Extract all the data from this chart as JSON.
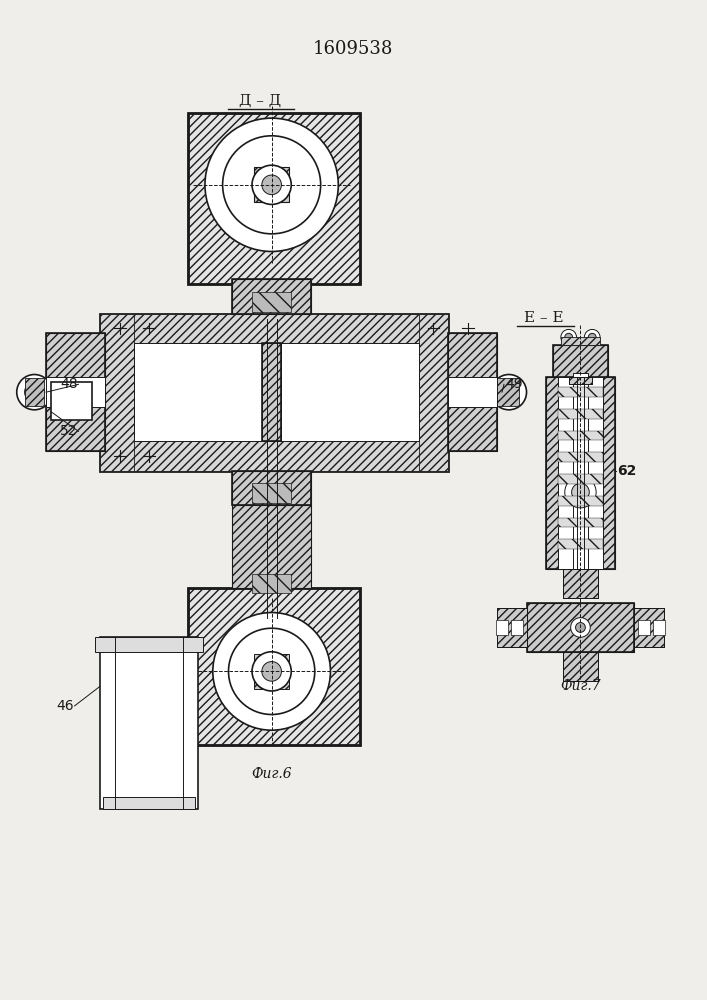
{
  "title": "1609538",
  "bg_color": "#f0eeea",
  "line_color": "#1a1a1a",
  "fig_width": 7.07,
  "fig_height": 10.0,
  "labels": {
    "DD": "Д – Д",
    "EE": "Е – Е",
    "fig6": "Фиг.6",
    "fig7": "Фиг.7",
    "n48": "48",
    "n49": "49",
    "n52": "52",
    "n46": "46",
    "n62": "62"
  }
}
